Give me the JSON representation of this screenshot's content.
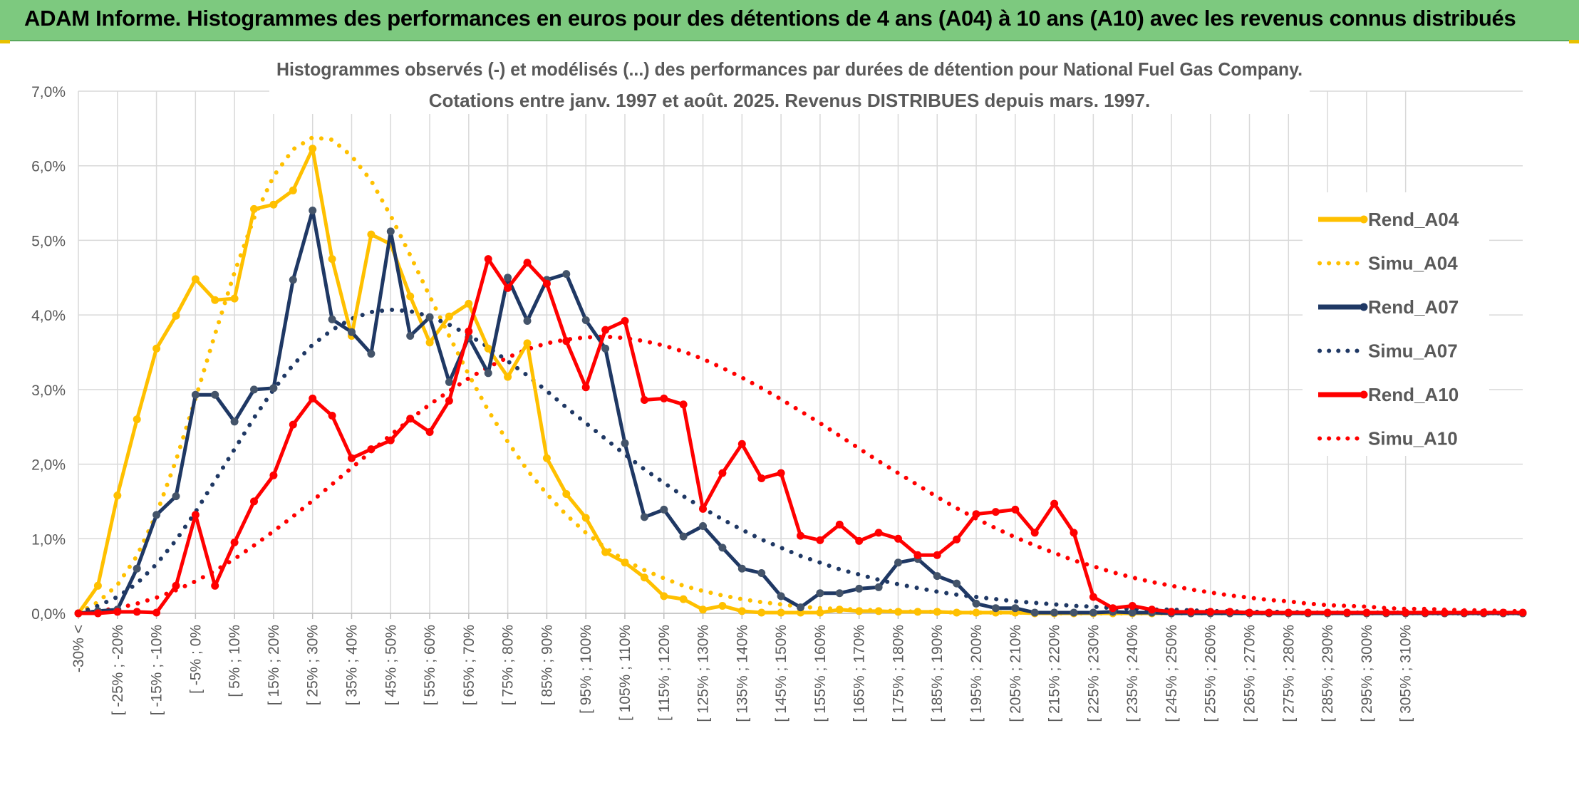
{
  "banner": {
    "title": "ADAM Informe. Histogrammes des performances en euros pour des détentions de 4 ans (A04) à 10 ans (A10) avec les revenus connus distribués"
  },
  "chart_data": {
    "type": "line",
    "title": "Histogrammes observés (-) et modélisés (...) des performances par durées de détention pour National Fuel Gas Company.",
    "subtitle": "Cotations entre janv. 1997 et août. 2025. Revenus DISTRIBUES depuis mars. 1997.",
    "xlabel": "",
    "ylabel": "",
    "ylim": [
      0,
      7
    ],
    "y_ticks": [
      "0,0%",
      "1,0%",
      "2,0%",
      "3,0%",
      "4,0%",
      "5,0%",
      "6,0%",
      "7,0%"
    ],
    "grid": true,
    "legend_position": "right",
    "x_ticks": [
      "-30% <",
      "[ -25% ; -20%",
      "[ -15% ; -10%",
      "[ -5% ; 0%",
      "[ 5% ; 10%",
      "[ 15% ; 20%",
      "[ 25% ; 30%",
      "[ 35% ; 40%",
      "[ 45% ; 50%",
      "[ 55% ; 60%",
      "[ 65% ; 70%",
      "[ 75% ; 80%",
      "[ 85% ; 90%",
      "[ 95% ; 100%",
      "[ 105% ; 110%",
      "[ 115% ; 120%",
      "[ 125% ; 130%",
      "[ 135% ; 140%",
      "[ 145% ; 150%",
      "[ 155% ; 160%",
      "[ 165% ; 170%",
      "[ 175% ; 180%",
      "[ 185% ; 190%",
      "[ 195% ; 200%",
      "[ 205% ; 210%",
      "[ 215% ; 220%",
      "[ 225% ; 230%",
      "[ 235% ; 240%",
      "[ 245% ; 250%",
      "[ 255% ; 260%",
      "[ 265% ; 270%",
      "[ 275% ; 280%",
      "[ 285% ; 290%",
      "[ 295% ; 300%",
      "[ 305% ; 310%"
    ],
    "series": [
      {
        "name": "Rend_A04",
        "color": "#ffc000",
        "style": "solid",
        "values": [
          0,
          0.37,
          1.58,
          2.6,
          3.55,
          3.99,
          4.48,
          4.2,
          4.22,
          5.42,
          5.48,
          5.67,
          6.23,
          4.75,
          3.72,
          5.08,
          4.95,
          4.25,
          3.63,
          3.98,
          4.15,
          3.55,
          3.17,
          3.62,
          2.08,
          1.6,
          1.28,
          0.82,
          0.68,
          0.48,
          0.23,
          0.19,
          0.05,
          0.1,
          0.03,
          0.01,
          0.01,
          0.01,
          0.01,
          0.05,
          0.03,
          0.03,
          0.02,
          0.02,
          0.02,
          0.01,
          0.01,
          0.01,
          0.01,
          0.0,
          0,
          0,
          0,
          0,
          0,
          0,
          0,
          0,
          0,
          0,
          0,
          0,
          0,
          0,
          0,
          0,
          0,
          0,
          0,
          0,
          0,
          0,
          0,
          0,
          0
        ]
      },
      {
        "name": "Simu_A04",
        "color": "#ffc000",
        "style": "dotted",
        "values": [
          0,
          0.15,
          0.38,
          0.77,
          1.33,
          2.05,
          2.88,
          3.74,
          4.57,
          5.3,
          5.86,
          6.22,
          6.38,
          6.35,
          6.13,
          5.8,
          5.33,
          4.8,
          4.25,
          3.72,
          3.2,
          2.72,
          2.3,
          1.92,
          1.6,
          1.32,
          1.08,
          0.88,
          0.71,
          0.58,
          0.47,
          0.37,
          0.3,
          0.24,
          0.19,
          0.15,
          0.12,
          0.09,
          0.07,
          0.06,
          0.05,
          0.04,
          0.03,
          0.02,
          0.02,
          0.01,
          0.01,
          0.01,
          0.01,
          0.01,
          0,
          0,
          0,
          0,
          0,
          0,
          0,
          0,
          0,
          0,
          0,
          0,
          0,
          0,
          0,
          0,
          0,
          0,
          0,
          0,
          0,
          0,
          0,
          0,
          0
        ]
      },
      {
        "name": "Rend_A07",
        "color": "#1f3864",
        "style": "solid",
        "values": [
          0,
          0.03,
          0.05,
          0.6,
          1.32,
          1.57,
          2.93,
          2.93,
          2.57,
          3.0,
          3.02,
          4.47,
          5.4,
          3.94,
          3.77,
          3.48,
          5.12,
          3.72,
          3.97,
          3.1,
          3.7,
          3.22,
          4.5,
          3.92,
          4.47,
          4.55,
          3.93,
          3.55,
          2.28,
          1.29,
          1.39,
          1.03,
          1.17,
          0.88,
          0.6,
          0.54,
          0.23,
          0.08,
          0.27,
          0.27,
          0.33,
          0.35,
          0.68,
          0.73,
          0.5,
          0.4,
          0.13,
          0.07,
          0.07,
          0.01,
          0.01,
          0.01,
          0.01,
          0.02,
          0.01,
          0.01,
          0,
          0,
          0,
          0,
          0,
          0,
          0,
          0,
          0,
          0,
          0,
          0,
          0,
          0,
          0,
          0,
          0,
          0,
          0
        ]
      },
      {
        "name": "Simu_A07",
        "color": "#1f3864",
        "style": "dotted",
        "values": [
          0,
          0.1,
          0.22,
          0.4,
          0.66,
          0.98,
          1.36,
          1.78,
          2.2,
          2.62,
          3.0,
          3.33,
          3.6,
          3.8,
          3.95,
          4.04,
          4.07,
          4.05,
          3.98,
          3.87,
          3.73,
          3.57,
          3.38,
          3.19,
          2.98,
          2.76,
          2.55,
          2.34,
          2.13,
          1.93,
          1.75,
          1.57,
          1.41,
          1.26,
          1.12,
          0.99,
          0.88,
          0.77,
          0.68,
          0.59,
          0.52,
          0.45,
          0.39,
          0.34,
          0.29,
          0.25,
          0.22,
          0.19,
          0.16,
          0.14,
          0.12,
          0.1,
          0.09,
          0.07,
          0.06,
          0.05,
          0.05,
          0.04,
          0.03,
          0.03,
          0.02,
          0.02,
          0.02,
          0.01,
          0.01,
          0.01,
          0.01,
          0.01,
          0.01,
          0,
          0,
          0,
          0,
          0,
          0
        ]
      },
      {
        "name": "Rend_A10",
        "color": "#ff0000",
        "style": "solid",
        "values": [
          0,
          0.0,
          0.02,
          0.02,
          0.01,
          0.37,
          1.32,
          0.37,
          0.95,
          1.5,
          1.85,
          2.53,
          2.88,
          2.65,
          2.08,
          2.2,
          2.32,
          2.61,
          2.43,
          2.85,
          3.78,
          4.75,
          4.36,
          4.7,
          4.42,
          3.65,
          3.03,
          3.8,
          3.92,
          2.86,
          2.88,
          2.8,
          1.4,
          1.88,
          2.27,
          1.81,
          1.88,
          1.04,
          0.98,
          1.19,
          0.97,
          1.08,
          1.0,
          0.78,
          0.78,
          0.99,
          1.33,
          1.36,
          1.39,
          1.08,
          1.47,
          1.08,
          0.22,
          0.07,
          0.1,
          0.05,
          0.02,
          0.02,
          0.02,
          0.02,
          0.01,
          0.01,
          0.01,
          0.01,
          0.01,
          0.01,
          0.01,
          0.01,
          0.01,
          0.01,
          0.01,
          0.01,
          0.01,
          0.01,
          0.01
        ]
      },
      {
        "name": "Simu_A10",
        "color": "#ff0000",
        "style": "dotted",
        "values": [
          0,
          0.03,
          0.07,
          0.13,
          0.21,
          0.31,
          0.43,
          0.57,
          0.73,
          0.91,
          1.1,
          1.3,
          1.51,
          1.73,
          1.95,
          2.17,
          2.39,
          2.6,
          2.8,
          2.98,
          3.15,
          3.3,
          3.43,
          3.54,
          3.62,
          3.67,
          3.7,
          3.71,
          3.69,
          3.65,
          3.59,
          3.51,
          3.41,
          3.29,
          3.16,
          3.02,
          2.87,
          2.71,
          2.55,
          2.38,
          2.21,
          2.04,
          1.88,
          1.72,
          1.56,
          1.41,
          1.27,
          1.14,
          1.02,
          0.91,
          0.81,
          0.71,
          0.63,
          0.55,
          0.48,
          0.42,
          0.37,
          0.32,
          0.28,
          0.24,
          0.21,
          0.18,
          0.16,
          0.13,
          0.11,
          0.1,
          0.09,
          0.07,
          0.06,
          0.06,
          0.05,
          0.04,
          0.04,
          0.03,
          0.03
        ]
      }
    ]
  }
}
